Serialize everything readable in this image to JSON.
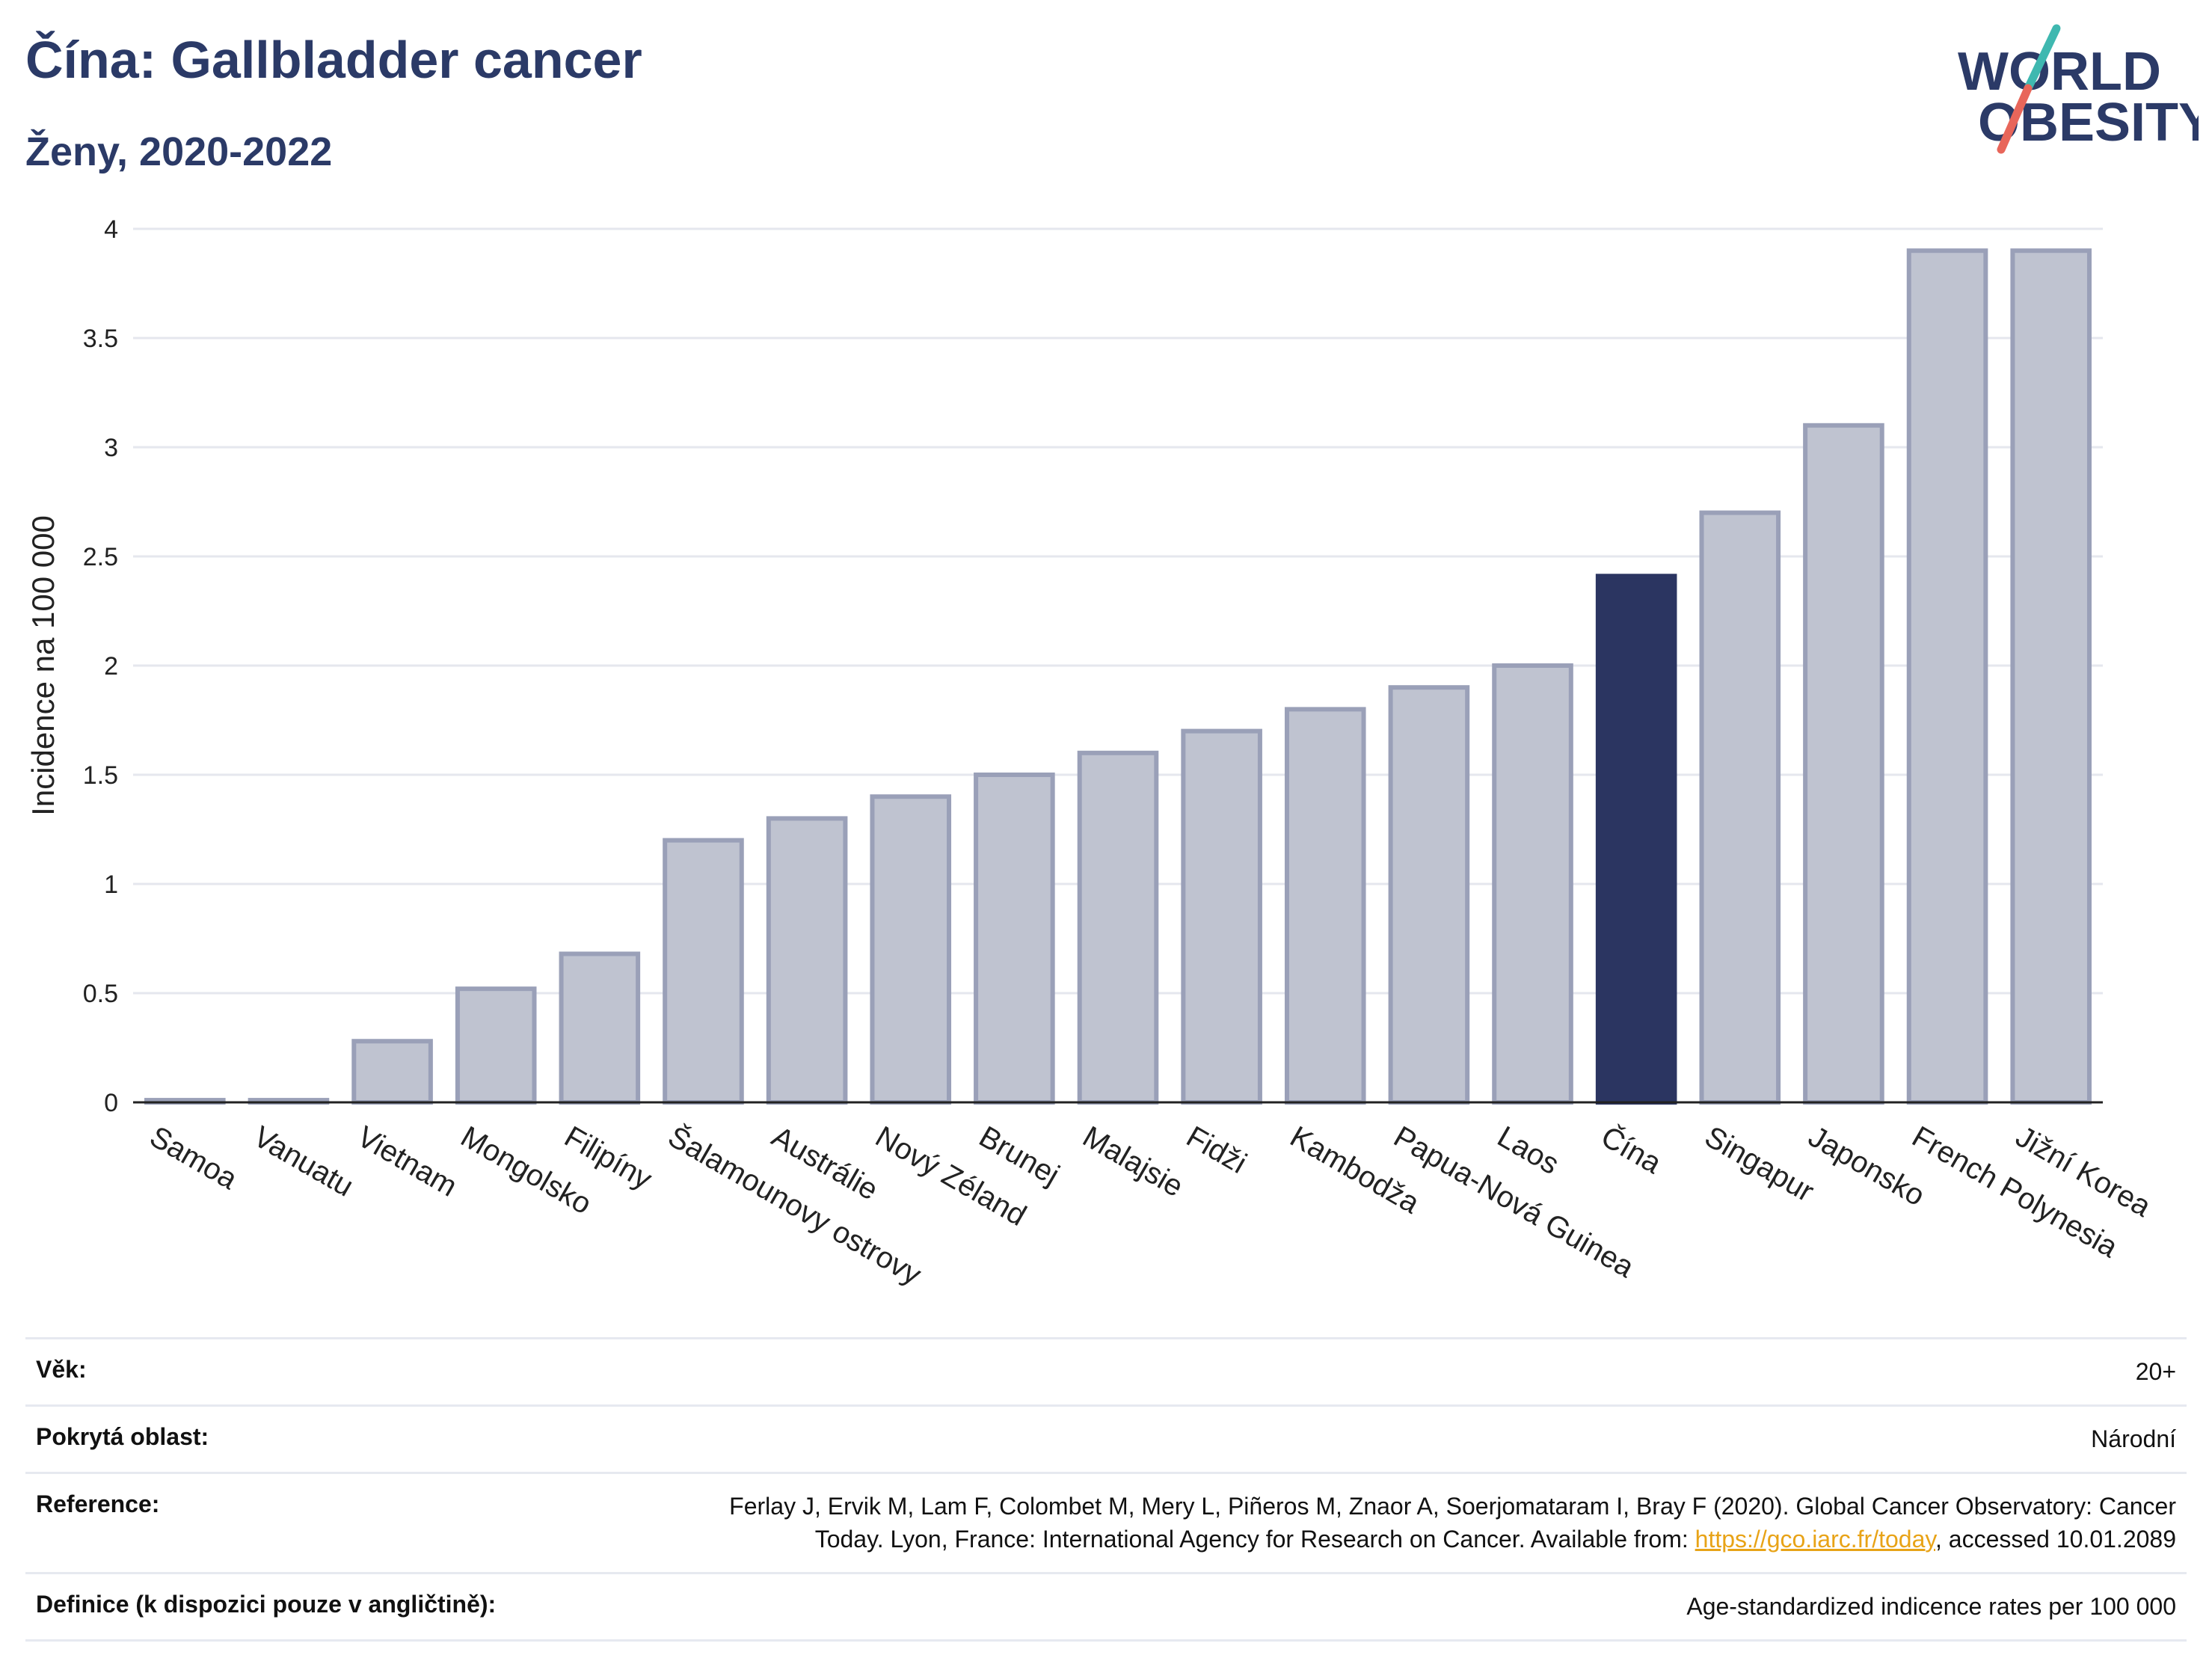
{
  "header": {
    "title": "Čína: Gallbladder cancer",
    "subtitle": "Ženy, 2020-2022"
  },
  "logo": {
    "line1": "WORLD",
    "line2": "OBESITY"
  },
  "colors": {
    "highlight": "#2b3561",
    "bar_fill": "#bfc3d0",
    "bar_stroke": "#9aa0b8",
    "brand": "#2b3a67",
    "link": "#e8a317"
  },
  "chart_data": {
    "type": "bar",
    "title": "Čína: Gallbladder cancer",
    "subtitle": "Ženy, 2020-2022",
    "xlabel": "",
    "ylabel": "Incidence na 100 000",
    "ylim": [
      0,
      4
    ],
    "yticks": [
      0,
      0.5,
      1,
      1.5,
      2,
      2.5,
      3,
      3.5,
      4
    ],
    "ytick_labels": [
      "0",
      "0.5",
      "1",
      "1.5",
      "2",
      "2.5",
      "3",
      "3.5",
      "4"
    ],
    "grid": true,
    "highlight": "Čína",
    "categories": [
      "Samoa",
      "Vanuatu",
      "Vietnam",
      "Mongolsko",
      "Filipíny",
      "Šalamounovy ostrovy",
      "Austrálie",
      "Nový Zéland",
      "Brunej",
      "Malajsie",
      "Fidži",
      "Kambodža",
      "Papua-Nová Guinea",
      "Laos",
      "Čína",
      "Singapur",
      "Japonsko",
      "French Polynesia",
      "Jižní Korea"
    ],
    "values": [
      0.01,
      0.01,
      0.28,
      0.52,
      0.68,
      1.2,
      1.3,
      1.4,
      1.5,
      1.6,
      1.7,
      1.8,
      1.9,
      2.0,
      2.41,
      2.7,
      3.1,
      3.9,
      3.9
    ]
  },
  "meta": {
    "age_label": "Věk:",
    "age_value": "20+",
    "area_label": "Pokrytá oblast:",
    "area_value": "Národní",
    "ref_label": "Reference:",
    "ref_line1": "Ferlay J, Ervik M, Lam F, Colombet M, Mery L, Piñeros M, Znaor A, Soerjomataram I, Bray F (2020). Global Cancer Observatory: Cancer",
    "ref_line2_pre": "Today. Lyon, France: International Agency for Research on Cancer. Available from: ",
    "ref_link": "https://gco.iarc.fr/today",
    "ref_line2_post": ", accessed 10.01.2089",
    "def_label": "Definice (k dispozici pouze v angličtině):",
    "def_value": "Age-standardized indicence rates per 100 000"
  }
}
